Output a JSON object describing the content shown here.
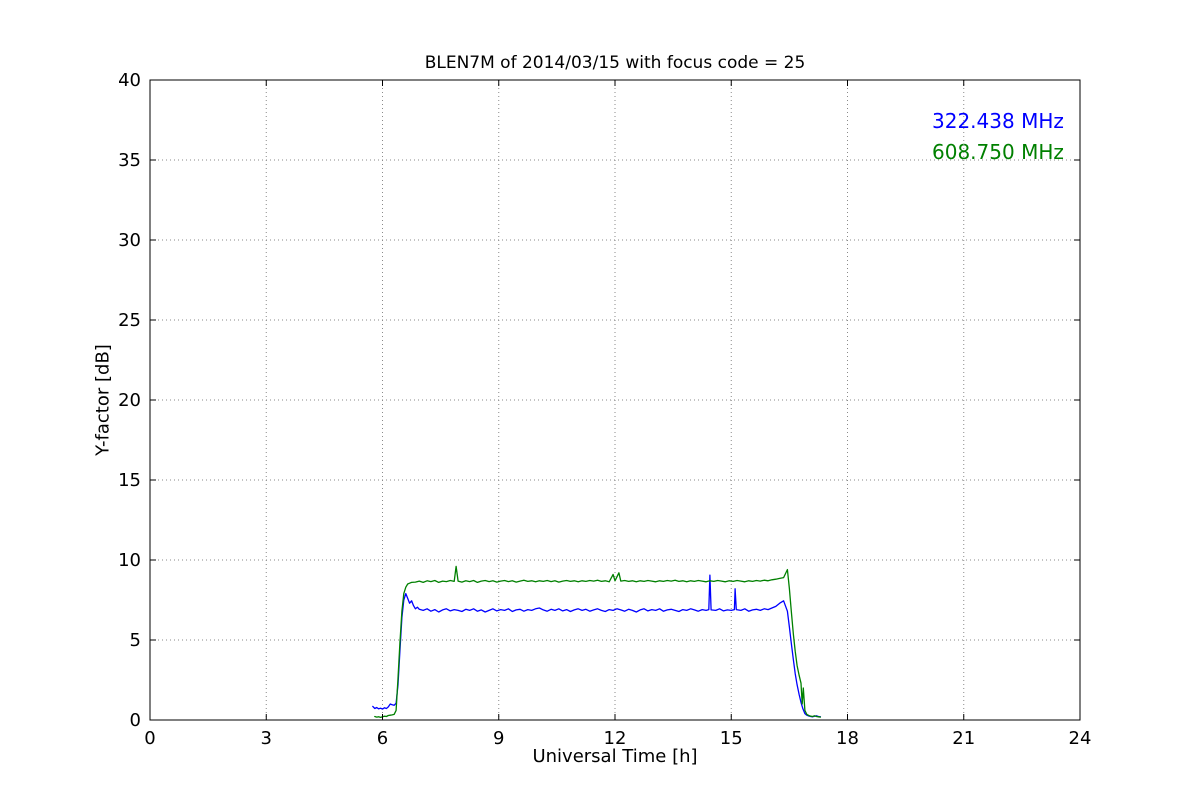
{
  "figure": {
    "background": "#ffffff"
  },
  "chart_data": {
    "type": "line",
    "title": "BLEN7M of 2014/03/15 with focus code = 25",
    "xlabel": "Universal Time [h]",
    "ylabel": "Y-factor [dB]",
    "xlim": [
      0,
      24
    ],
    "ylim": [
      0,
      40
    ],
    "x_ticks": [
      0,
      3,
      6,
      9,
      12,
      15,
      18,
      21,
      24
    ],
    "y_ticks": [
      0,
      5,
      10,
      15,
      20,
      25,
      30,
      35,
      40
    ],
    "grid": "dotted",
    "legend_position": "upper-right",
    "series": [
      {
        "name": "322.438 MHz",
        "color": "#0000ff",
        "points": [
          [
            5.75,
            0.85
          ],
          [
            5.8,
            0.72
          ],
          [
            5.85,
            0.78
          ],
          [
            5.9,
            0.7
          ],
          [
            5.95,
            0.74
          ],
          [
            6.0,
            0.68
          ],
          [
            6.05,
            0.76
          ],
          [
            6.1,
            0.72
          ],
          [
            6.15,
            0.82
          ],
          [
            6.2,
            1.0
          ],
          [
            6.25,
            0.95
          ],
          [
            6.3,
            0.92
          ],
          [
            6.35,
            1.05
          ],
          [
            6.4,
            2.2
          ],
          [
            6.45,
            4.3
          ],
          [
            6.5,
            6.4
          ],
          [
            6.55,
            7.5
          ],
          [
            6.6,
            7.9
          ],
          [
            6.65,
            7.6
          ],
          [
            6.7,
            7.3
          ],
          [
            6.75,
            7.45
          ],
          [
            6.8,
            7.15
          ],
          [
            6.85,
            6.95
          ],
          [
            6.9,
            7.05
          ],
          [
            6.95,
            6.92
          ],
          [
            7.05,
            6.85
          ],
          [
            7.15,
            6.95
          ],
          [
            7.25,
            6.8
          ],
          [
            7.35,
            6.9
          ],
          [
            7.45,
            6.75
          ],
          [
            7.55,
            6.88
          ],
          [
            7.65,
            6.95
          ],
          [
            7.75,
            6.82
          ],
          [
            7.85,
            6.9
          ],
          [
            7.95,
            6.85
          ],
          [
            8.05,
            6.78
          ],
          [
            8.15,
            6.92
          ],
          [
            8.25,
            6.85
          ],
          [
            8.35,
            6.95
          ],
          [
            8.45,
            6.8
          ],
          [
            8.55,
            6.88
          ],
          [
            8.65,
            6.75
          ],
          [
            8.75,
            6.85
          ],
          [
            8.85,
            6.95
          ],
          [
            8.95,
            6.82
          ],
          [
            9.05,
            6.9
          ],
          [
            9.15,
            6.85
          ],
          [
            9.25,
            6.95
          ],
          [
            9.35,
            6.78
          ],
          [
            9.45,
            6.88
          ],
          [
            9.55,
            6.92
          ],
          [
            9.65,
            6.8
          ],
          [
            9.75,
            6.9
          ],
          [
            9.85,
            6.85
          ],
          [
            9.95,
            6.95
          ],
          [
            10.05,
            7.0
          ],
          [
            10.15,
            6.88
          ],
          [
            10.25,
            6.8
          ],
          [
            10.35,
            6.92
          ],
          [
            10.45,
            6.85
          ],
          [
            10.55,
            6.95
          ],
          [
            10.65,
            6.82
          ],
          [
            10.75,
            6.9
          ],
          [
            10.85,
            6.78
          ],
          [
            10.95,
            6.88
          ],
          [
            11.05,
            6.95
          ],
          [
            11.15,
            6.85
          ],
          [
            11.25,
            6.92
          ],
          [
            11.35,
            6.8
          ],
          [
            11.45,
            6.88
          ],
          [
            11.55,
            6.95
          ],
          [
            11.65,
            6.85
          ],
          [
            11.75,
            6.78
          ],
          [
            11.85,
            6.9
          ],
          [
            11.95,
            6.85
          ],
          [
            12.05,
            6.95
          ],
          [
            12.15,
            6.88
          ],
          [
            12.25,
            6.8
          ],
          [
            12.35,
            6.92
          ],
          [
            12.45,
            6.85
          ],
          [
            12.55,
            6.75
          ],
          [
            12.65,
            6.88
          ],
          [
            12.75,
            6.95
          ],
          [
            12.85,
            6.82
          ],
          [
            12.95,
            6.9
          ],
          [
            13.05,
            6.85
          ],
          [
            13.15,
            6.95
          ],
          [
            13.25,
            6.8
          ],
          [
            13.35,
            6.88
          ],
          [
            13.45,
            6.92
          ],
          [
            13.55,
            6.85
          ],
          [
            13.65,
            6.78
          ],
          [
            13.75,
            6.9
          ],
          [
            13.85,
            6.85
          ],
          [
            13.95,
            6.95
          ],
          [
            14.05,
            6.88
          ],
          [
            14.15,
            6.8
          ],
          [
            14.25,
            6.9
          ],
          [
            14.35,
            6.85
          ],
          [
            14.42,
            6.9
          ],
          [
            14.45,
            9.05
          ],
          [
            14.48,
            6.88
          ],
          [
            14.6,
            6.85
          ],
          [
            14.7,
            6.95
          ],
          [
            14.8,
            6.82
          ],
          [
            14.9,
            6.88
          ],
          [
            15.0,
            6.85
          ],
          [
            15.08,
            6.9
          ],
          [
            15.1,
            8.2
          ],
          [
            15.13,
            6.9
          ],
          [
            15.25,
            6.85
          ],
          [
            15.35,
            6.95
          ],
          [
            15.45,
            6.8
          ],
          [
            15.55,
            6.88
          ],
          [
            15.65,
            6.92
          ],
          [
            15.75,
            6.85
          ],
          [
            15.85,
            6.95
          ],
          [
            15.95,
            6.9
          ],
          [
            16.05,
            7.0
          ],
          [
            16.15,
            7.1
          ],
          [
            16.25,
            7.3
          ],
          [
            16.35,
            7.45
          ],
          [
            16.45,
            6.8
          ],
          [
            16.5,
            5.8
          ],
          [
            16.55,
            4.8
          ],
          [
            16.6,
            3.8
          ],
          [
            16.65,
            2.9
          ],
          [
            16.7,
            2.2
          ],
          [
            16.75,
            1.6
          ],
          [
            16.8,
            1.1
          ],
          [
            16.85,
            0.7
          ],
          [
            16.9,
            0.4
          ],
          [
            16.95,
            0.3
          ],
          [
            17.0,
            0.25
          ],
          [
            17.05,
            0.22
          ],
          [
            17.1,
            0.2
          ],
          [
            17.15,
            0.24
          ],
          [
            17.2,
            0.26
          ],
          [
            17.25,
            0.22
          ],
          [
            17.3,
            0.2
          ]
        ]
      },
      {
        "name": "608.750 MHz",
        "color": "#008000",
        "points": [
          [
            5.8,
            0.22
          ],
          [
            5.85,
            0.18
          ],
          [
            5.9,
            0.2
          ],
          [
            5.95,
            0.16
          ],
          [
            6.0,
            0.2
          ],
          [
            6.05,
            0.24
          ],
          [
            6.1,
            0.22
          ],
          [
            6.15,
            0.28
          ],
          [
            6.2,
            0.3
          ],
          [
            6.25,
            0.32
          ],
          [
            6.3,
            0.35
          ],
          [
            6.35,
            0.6
          ],
          [
            6.4,
            2.6
          ],
          [
            6.45,
            4.8
          ],
          [
            6.5,
            6.8
          ],
          [
            6.55,
            7.9
          ],
          [
            6.6,
            8.3
          ],
          [
            6.65,
            8.5
          ],
          [
            6.7,
            8.55
          ],
          [
            6.75,
            8.6
          ],
          [
            6.85,
            8.62
          ],
          [
            6.95,
            8.68
          ],
          [
            7.05,
            8.6
          ],
          [
            7.15,
            8.7
          ],
          [
            7.25,
            8.65
          ],
          [
            7.35,
            8.72
          ],
          [
            7.45,
            8.6
          ],
          [
            7.55,
            8.68
          ],
          [
            7.65,
            8.65
          ],
          [
            7.75,
            8.72
          ],
          [
            7.85,
            8.66
          ],
          [
            7.9,
            9.6
          ],
          [
            7.95,
            8.68
          ],
          [
            8.05,
            8.62
          ],
          [
            8.15,
            8.7
          ],
          [
            8.25,
            8.65
          ],
          [
            8.35,
            8.72
          ],
          [
            8.45,
            8.6
          ],
          [
            8.55,
            8.68
          ],
          [
            8.65,
            8.72
          ],
          [
            8.75,
            8.65
          ],
          [
            8.85,
            8.7
          ],
          [
            8.95,
            8.62
          ],
          [
            9.05,
            8.68
          ],
          [
            9.15,
            8.72
          ],
          [
            9.25,
            8.65
          ],
          [
            9.35,
            8.7
          ],
          [
            9.45,
            8.62
          ],
          [
            9.55,
            8.68
          ],
          [
            9.65,
            8.74
          ],
          [
            9.75,
            8.66
          ],
          [
            9.85,
            8.7
          ],
          [
            9.95,
            8.64
          ],
          [
            10.05,
            8.7
          ],
          [
            10.15,
            8.66
          ],
          [
            10.25,
            8.72
          ],
          [
            10.35,
            8.65
          ],
          [
            10.45,
            8.7
          ],
          [
            10.55,
            8.62
          ],
          [
            10.65,
            8.68
          ],
          [
            10.75,
            8.72
          ],
          [
            10.85,
            8.66
          ],
          [
            10.95,
            8.7
          ],
          [
            11.05,
            8.64
          ],
          [
            11.15,
            8.7
          ],
          [
            11.25,
            8.66
          ],
          [
            11.35,
            8.72
          ],
          [
            11.45,
            8.68
          ],
          [
            11.55,
            8.74
          ],
          [
            11.65,
            8.66
          ],
          [
            11.75,
            8.7
          ],
          [
            11.85,
            8.64
          ],
          [
            11.95,
            9.1
          ],
          [
            12.0,
            8.7
          ],
          [
            12.1,
            9.2
          ],
          [
            12.15,
            8.68
          ],
          [
            12.25,
            8.72
          ],
          [
            12.35,
            8.66
          ],
          [
            12.45,
            8.7
          ],
          [
            12.55,
            8.64
          ],
          [
            12.65,
            8.7
          ],
          [
            12.75,
            8.66
          ],
          [
            12.85,
            8.72
          ],
          [
            12.95,
            8.68
          ],
          [
            13.05,
            8.64
          ],
          [
            13.15,
            8.7
          ],
          [
            13.25,
            8.66
          ],
          [
            13.35,
            8.72
          ],
          [
            13.45,
            8.68
          ],
          [
            13.55,
            8.74
          ],
          [
            13.65,
            8.66
          ],
          [
            13.75,
            8.7
          ],
          [
            13.85,
            8.64
          ],
          [
            13.95,
            8.7
          ],
          [
            14.05,
            8.66
          ],
          [
            14.15,
            8.72
          ],
          [
            14.25,
            8.68
          ],
          [
            14.35,
            8.64
          ],
          [
            14.45,
            8.7
          ],
          [
            14.55,
            8.66
          ],
          [
            14.65,
            8.72
          ],
          [
            14.75,
            8.68
          ],
          [
            14.85,
            8.64
          ],
          [
            14.95,
            8.7
          ],
          [
            15.05,
            8.66
          ],
          [
            15.15,
            8.72
          ],
          [
            15.25,
            8.68
          ],
          [
            15.35,
            8.64
          ],
          [
            15.45,
            8.7
          ],
          [
            15.55,
            8.66
          ],
          [
            15.65,
            8.72
          ],
          [
            15.75,
            8.68
          ],
          [
            15.85,
            8.74
          ],
          [
            15.95,
            8.7
          ],
          [
            16.05,
            8.76
          ],
          [
            16.15,
            8.8
          ],
          [
            16.25,
            8.85
          ],
          [
            16.35,
            8.9
          ],
          [
            16.45,
            9.4
          ],
          [
            16.5,
            8.2
          ],
          [
            16.55,
            6.8
          ],
          [
            16.6,
            5.4
          ],
          [
            16.65,
            4.3
          ],
          [
            16.7,
            3.4
          ],
          [
            16.75,
            2.8
          ],
          [
            16.8,
            2.3
          ],
          [
            16.83,
            1.0
          ],
          [
            16.86,
            2.0
          ],
          [
            16.9,
            0.6
          ],
          [
            16.95,
            0.35
          ],
          [
            17.0,
            0.28
          ],
          [
            17.05,
            0.24
          ],
          [
            17.1,
            0.22
          ],
          [
            17.15,
            0.26
          ],
          [
            17.2,
            0.22
          ],
          [
            17.25,
            0.2
          ],
          [
            17.3,
            0.18
          ]
        ]
      }
    ]
  }
}
